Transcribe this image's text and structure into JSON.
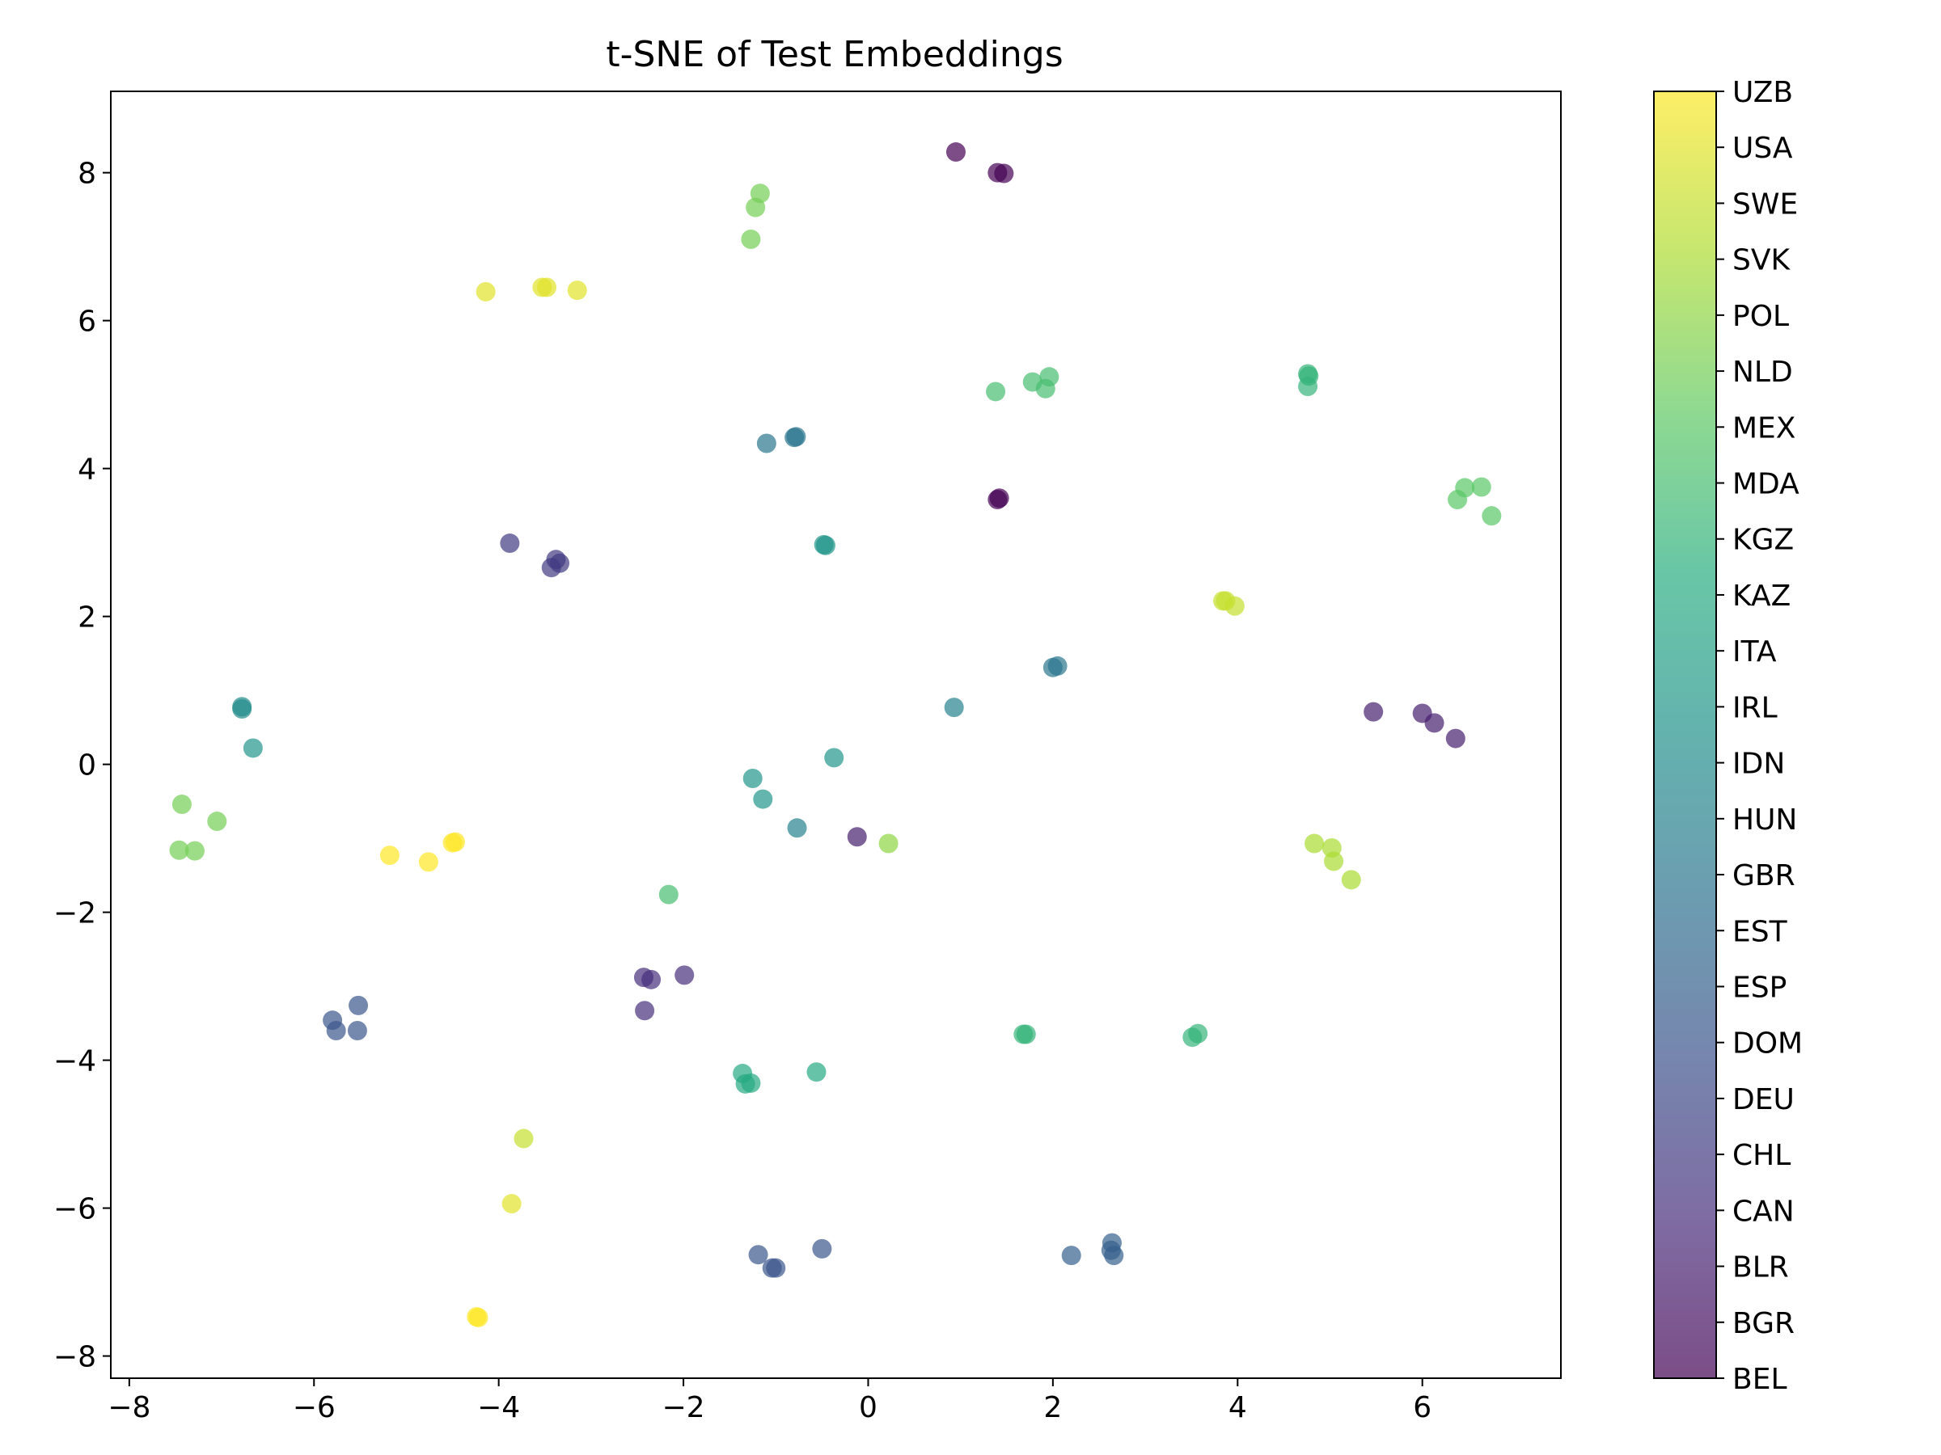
{
  "chart_data": {
    "type": "scatter",
    "title": "t-SNE of Test Embeddings",
    "xlabel": "",
    "ylabel": "",
    "xlim": [
      -8.2,
      7.5
    ],
    "ylim": [
      -8.3,
      9.1
    ],
    "xticks": [
      -8,
      -6,
      -4,
      -2,
      0,
      2,
      4,
      6
    ],
    "yticks": [
      -8,
      -6,
      -4,
      -2,
      0,
      2,
      4,
      6,
      8
    ],
    "grid": false,
    "colormap": "viridis",
    "alpha": 0.7,
    "colorbar_categories": [
      "BEL",
      "BGR",
      "BLR",
      "CAN",
      "CHL",
      "DEU",
      "DOM",
      "ESP",
      "EST",
      "GBR",
      "HUN",
      "IDN",
      "IRL",
      "ITA",
      "KAZ",
      "KGZ",
      "MDA",
      "MEX",
      "NLD",
      "POL",
      "SVK",
      "SWE",
      "USA",
      "UZB"
    ],
    "points": [
      {
        "x": 0.95,
        "y": 8.28,
        "c": 0
      },
      {
        "x": 1.4,
        "y": 8.0,
        "c": 0
      },
      {
        "x": 1.47,
        "y": 7.99,
        "c": 0
      },
      {
        "x": 1.42,
        "y": 3.6,
        "c": 0
      },
      {
        "x": 1.4,
        "y": 3.58,
        "c": 0
      },
      {
        "x": 5.47,
        "y": 0.71,
        "c": 2
      },
      {
        "x": 6.0,
        "y": 0.69,
        "c": 2
      },
      {
        "x": 6.13,
        "y": 0.56,
        "c": 2
      },
      {
        "x": 6.36,
        "y": 0.35,
        "c": 2
      },
      {
        "x": -0.12,
        "y": -0.98,
        "c": 2
      },
      {
        "x": -3.88,
        "y": 2.99,
        "c": 4
      },
      {
        "x": -3.38,
        "y": 2.77,
        "c": 4
      },
      {
        "x": -3.34,
        "y": 2.72,
        "c": 4
      },
      {
        "x": -3.43,
        "y": 2.66,
        "c": 4
      },
      {
        "x": -2.43,
        "y": -2.88,
        "c": 3
      },
      {
        "x": -2.35,
        "y": -2.91,
        "c": 3
      },
      {
        "x": -1.99,
        "y": -2.85,
        "c": 3
      },
      {
        "x": -2.42,
        "y": -3.33,
        "c": 3
      },
      {
        "x": -5.8,
        "y": -3.46,
        "c": 6
      },
      {
        "x": -5.76,
        "y": -3.6,
        "c": 6
      },
      {
        "x": -5.52,
        "y": -3.26,
        "c": 6
      },
      {
        "x": -5.53,
        "y": -3.6,
        "c": 6
      },
      {
        "x": -1.19,
        "y": -6.63,
        "c": 6
      },
      {
        "x": -1.04,
        "y": -6.81,
        "c": 6
      },
      {
        "x": -1.0,
        "y": -6.81,
        "c": 6
      },
      {
        "x": -0.5,
        "y": -6.55,
        "c": 6
      },
      {
        "x": 2.2,
        "y": -6.64,
        "c": 7
      },
      {
        "x": 2.64,
        "y": -6.47,
        "c": 7
      },
      {
        "x": 2.63,
        "y": -6.57,
        "c": 7
      },
      {
        "x": 2.66,
        "y": -6.64,
        "c": 7
      },
      {
        "x": -1.1,
        "y": 4.34,
        "c": 9
      },
      {
        "x": -0.78,
        "y": 4.43,
        "c": 9
      },
      {
        "x": -0.8,
        "y": 4.42,
        "c": 9
      },
      {
        "x": 2.0,
        "y": 1.31,
        "c": 9
      },
      {
        "x": 2.05,
        "y": 1.33,
        "c": 9
      },
      {
        "x": 0.93,
        "y": 0.77,
        "c": 10
      },
      {
        "x": -0.77,
        "y": -0.86,
        "c": 10
      },
      {
        "x": -6.78,
        "y": 0.78,
        "c": 11
      },
      {
        "x": -6.78,
        "y": 0.75,
        "c": 11
      },
      {
        "x": -6.66,
        "y": 0.22,
        "c": 12
      },
      {
        "x": -0.48,
        "y": 2.97,
        "c": 12
      },
      {
        "x": -0.46,
        "y": 2.96,
        "c": 12
      },
      {
        "x": -0.37,
        "y": 0.09,
        "c": 12
      },
      {
        "x": -1.25,
        "y": -0.19,
        "c": 12
      },
      {
        "x": -1.14,
        "y": -0.47,
        "c": 12
      },
      {
        "x": -0.56,
        "y": -4.16,
        "c": 14
      },
      {
        "x": -1.36,
        "y": -4.18,
        "c": 14
      },
      {
        "x": -1.33,
        "y": -4.32,
        "c": 14
      },
      {
        "x": -1.27,
        "y": -4.31,
        "c": 14
      },
      {
        "x": 1.71,
        "y": -3.65,
        "c": 15
      },
      {
        "x": 1.68,
        "y": -3.65,
        "c": 15
      },
      {
        "x": 3.51,
        "y": -3.69,
        "c": 15
      },
      {
        "x": 3.57,
        "y": -3.64,
        "c": 15
      },
      {
        "x": 4.76,
        "y": 5.28,
        "c": 15
      },
      {
        "x": 4.77,
        "y": 5.25,
        "c": 15
      },
      {
        "x": 4.76,
        "y": 5.11,
        "c": 15
      },
      {
        "x": -2.16,
        "y": -1.76,
        "c": 16
      },
      {
        "x": 1.38,
        "y": 5.04,
        "c": 16
      },
      {
        "x": 1.78,
        "y": 5.17,
        "c": 16
      },
      {
        "x": 1.96,
        "y": 5.24,
        "c": 16
      },
      {
        "x": 1.92,
        "y": 5.08,
        "c": 16
      },
      {
        "x": 6.46,
        "y": 3.74,
        "c": 17
      },
      {
        "x": 6.64,
        "y": 3.75,
        "c": 17
      },
      {
        "x": 6.38,
        "y": 3.58,
        "c": 17
      },
      {
        "x": 6.75,
        "y": 3.36,
        "c": 17
      },
      {
        "x": -1.17,
        "y": 7.72,
        "c": 18
      },
      {
        "x": -1.22,
        "y": 7.53,
        "c": 18
      },
      {
        "x": -1.27,
        "y": 7.1,
        "c": 18
      },
      {
        "x": -7.43,
        "y": -0.54,
        "c": 18
      },
      {
        "x": -7.05,
        "y": -0.77,
        "c": 18
      },
      {
        "x": -7.46,
        "y": -1.16,
        "c": 18
      },
      {
        "x": -7.29,
        "y": -1.17,
        "c": 18
      },
      {
        "x": 0.22,
        "y": -1.07,
        "c": 19
      },
      {
        "x": 4.83,
        "y": -1.07,
        "c": 20
      },
      {
        "x": 5.02,
        "y": -1.13,
        "c": 20
      },
      {
        "x": 5.04,
        "y": -1.31,
        "c": 20
      },
      {
        "x": 5.23,
        "y": -1.56,
        "c": 20
      },
      {
        "x": 3.84,
        "y": 2.21,
        "c": 21
      },
      {
        "x": 3.87,
        "y": 2.21,
        "c": 21
      },
      {
        "x": 3.97,
        "y": 2.14,
        "c": 21
      },
      {
        "x": -3.73,
        "y": -5.06,
        "c": 21
      },
      {
        "x": -4.14,
        "y": 6.39,
        "c": 22
      },
      {
        "x": -3.53,
        "y": 6.45,
        "c": 22
      },
      {
        "x": -3.48,
        "y": 6.45,
        "c": 22
      },
      {
        "x": -3.15,
        "y": 6.41,
        "c": 22
      },
      {
        "x": -3.86,
        "y": -5.94,
        "c": 22
      },
      {
        "x": -4.24,
        "y": -7.47,
        "c": 23
      },
      {
        "x": -4.22,
        "y": -7.48,
        "c": 23
      },
      {
        "x": -5.18,
        "y": -1.23,
        "c": 23
      },
      {
        "x": -4.76,
        "y": -1.32,
        "c": 23
      },
      {
        "x": -4.5,
        "y": -1.06,
        "c": 23
      },
      {
        "x": -4.47,
        "y": -1.05,
        "c": 23
      }
    ]
  }
}
